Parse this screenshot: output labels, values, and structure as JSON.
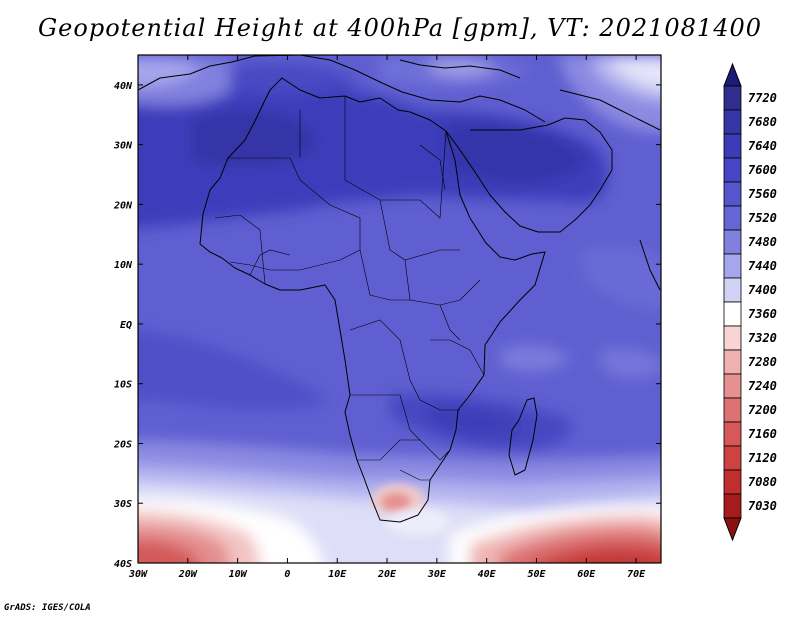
{
  "title": "Geopotential Height at 400hPa [gpm], VT: 2021081400",
  "credit": "GrADS: IGES/COLA",
  "map": {
    "lon_range": [
      -30,
      75
    ],
    "lat_range": [
      -40,
      45
    ],
    "lat_ticks": [
      {
        "value": 40,
        "label": "40N"
      },
      {
        "value": 30,
        "label": "30N"
      },
      {
        "value": 20,
        "label": "20N"
      },
      {
        "value": 10,
        "label": "10N"
      },
      {
        "value": 0,
        "label": "EQ"
      },
      {
        "value": -10,
        "label": "10S"
      },
      {
        "value": -20,
        "label": "20S"
      },
      {
        "value": -30,
        "label": "30S"
      },
      {
        "value": -40,
        "label": "40S"
      }
    ],
    "lon_ticks": [
      {
        "value": -30,
        "label": "30W"
      },
      {
        "value": -20,
        "label": "20W"
      },
      {
        "value": -10,
        "label": "10W"
      },
      {
        "value": 0,
        "label": "0"
      },
      {
        "value": 10,
        "label": "10E"
      },
      {
        "value": 20,
        "label": "20E"
      },
      {
        "value": 30,
        "label": "30E"
      },
      {
        "value": 40,
        "label": "40E"
      },
      {
        "value": 50,
        "label": "50E"
      },
      {
        "value": 60,
        "label": "60E"
      },
      {
        "value": 70,
        "label": "70E"
      }
    ]
  },
  "colorbar": {
    "levels": [
      {
        "label": "7720",
        "color": "#2e2e8f"
      },
      {
        "label": "7680",
        "color": "#3535a6"
      },
      {
        "label": "7640",
        "color": "#3c3cb8"
      },
      {
        "label": "7600",
        "color": "#4545c5"
      },
      {
        "label": "7560",
        "color": "#5555cc"
      },
      {
        "label": "7520",
        "color": "#6565d3"
      },
      {
        "label": "7480",
        "color": "#8080de"
      },
      {
        "label": "7440",
        "color": "#a6a6ec"
      },
      {
        "label": "7400",
        "color": "#d2d2f6"
      },
      {
        "label": "7360",
        "color": "#ffffff"
      },
      {
        "label": "7320",
        "color": "#f8d4d4"
      },
      {
        "label": "7280",
        "color": "#f0b0b0"
      },
      {
        "label": "7240",
        "color": "#e69090"
      },
      {
        "label": "7200",
        "color": "#dc7272"
      },
      {
        "label": "7160",
        "color": "#d65858"
      },
      {
        "label": "7120",
        "color": "#cf4242"
      },
      {
        "label": "7080",
        "color": "#c12e2e"
      },
      {
        "label": "7030",
        "color": "#a61c1c"
      }
    ],
    "top_color": "#1c1c78",
    "bottom_color": "#8c1010"
  }
}
